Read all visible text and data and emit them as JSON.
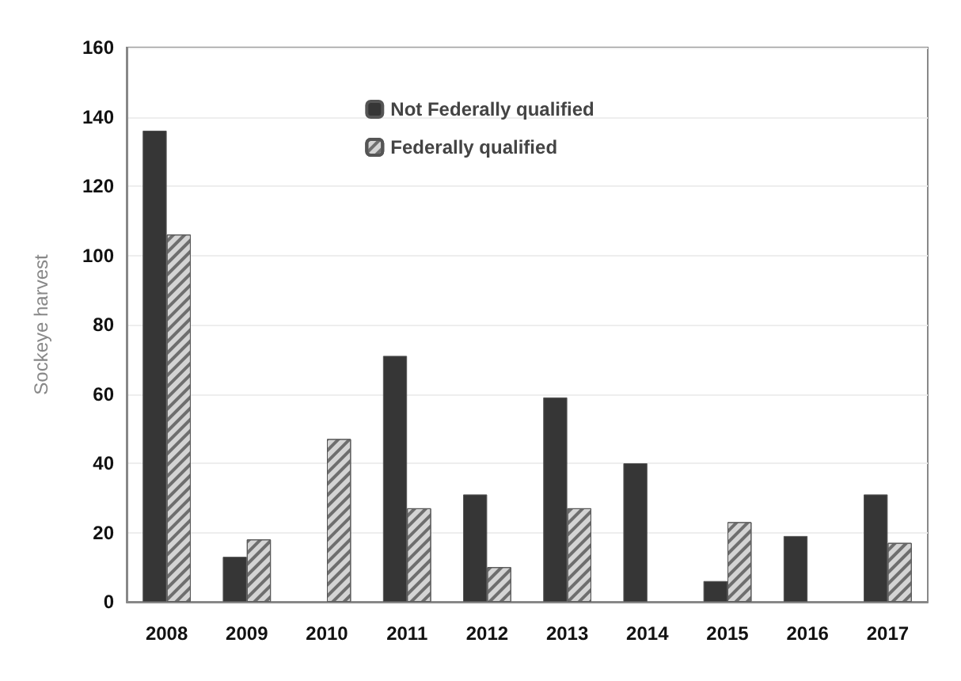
{
  "chart_data": {
    "type": "bar",
    "ylabel": "Sockeye harvest",
    "categories": [
      "2008",
      "2009",
      "2010",
      "2011",
      "2012",
      "2013",
      "2014",
      "2015",
      "2016",
      "2017"
    ],
    "series": [
      {
        "name": "Not Federally qualified",
        "color": "#363636",
        "values": [
          136,
          13,
          0,
          71,
          31,
          59,
          40,
          6,
          19,
          31
        ]
      },
      {
        "name": "Federally qualified",
        "color": "#d4d4d4",
        "values": [
          106,
          18,
          47,
          27,
          10,
          27,
          0,
          23,
          0,
          17
        ]
      }
    ],
    "ylim": [
      0,
      160
    ],
    "yticks": [
      0,
      20,
      40,
      60,
      80,
      100,
      120,
      140,
      160
    ],
    "grid": "y",
    "legend": "top"
  }
}
